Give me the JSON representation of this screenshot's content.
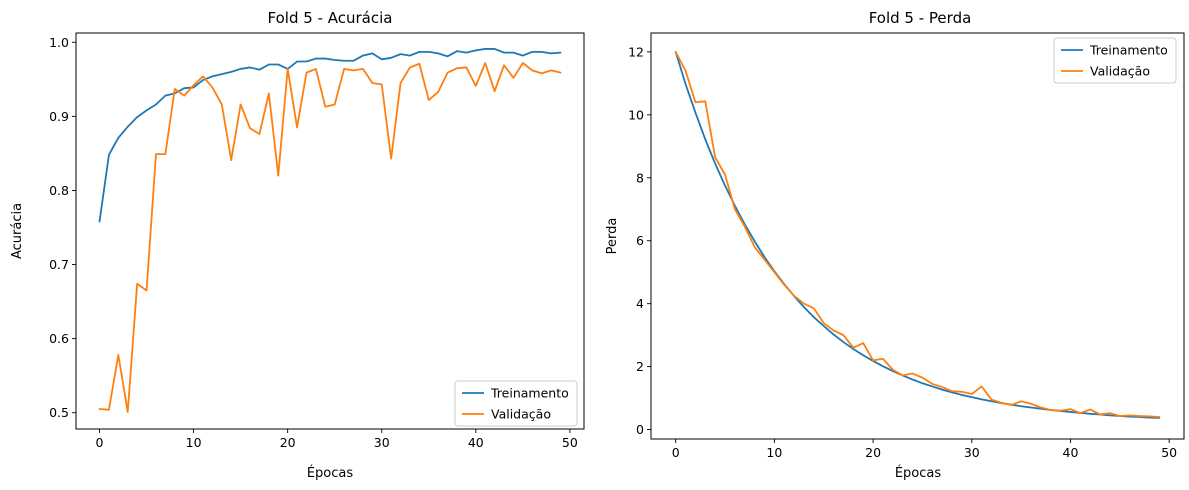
{
  "figure": {
    "background": "#ffffff",
    "series_colors": {
      "Treinamento": "#1f77b4",
      "Validação": "#ff7f0e"
    }
  },
  "chart_data": [
    {
      "type": "line",
      "title": "Fold 5 - Acurácia",
      "xlabel": "Épocas",
      "ylabel": "Acurácia",
      "xlim": [
        -2.5,
        51.5
      ],
      "ylim": [
        0.478,
        1.0125
      ],
      "xticks": [
        0,
        10,
        20,
        30,
        40,
        50
      ],
      "yticks": [
        0.5,
        0.6,
        0.7,
        0.8,
        0.9,
        1.0
      ],
      "xtick_labels": [
        "0",
        "10",
        "20",
        "30",
        "40",
        "50"
      ],
      "ytick_labels": [
        "0.5",
        "0.6",
        "0.7",
        "0.8",
        "0.9",
        "1.0"
      ],
      "grid": false,
      "legend_position": "lower-right",
      "x": [
        0,
        1,
        2,
        3,
        4,
        5,
        6,
        7,
        8,
        9,
        10,
        11,
        12,
        13,
        14,
        15,
        16,
        17,
        18,
        19,
        20,
        21,
        22,
        23,
        24,
        25,
        26,
        27,
        28,
        29,
        30,
        31,
        32,
        33,
        34,
        35,
        36,
        37,
        38,
        39,
        40,
        41,
        42,
        43,
        44,
        45,
        46,
        47,
        48,
        49
      ],
      "series": [
        {
          "name": "Treinamento",
          "color": "#1f77b4",
          "values": [
            0.758,
            0.848,
            0.871,
            0.886,
            0.899,
            0.908,
            0.916,
            0.928,
            0.931,
            0.938,
            0.939,
            0.949,
            0.954,
            0.957,
            0.96,
            0.964,
            0.966,
            0.963,
            0.97,
            0.97,
            0.964,
            0.974,
            0.974,
            0.978,
            0.978,
            0.976,
            0.975,
            0.975,
            0.982,
            0.985,
            0.977,
            0.979,
            0.984,
            0.982,
            0.987,
            0.987,
            0.985,
            0.981,
            0.988,
            0.986,
            0.989,
            0.991,
            0.991,
            0.986,
            0.986,
            0.982,
            0.987,
            0.987,
            0.985,
            0.986
          ]
        },
        {
          "name": "Validação",
          "color": "#ff7f0e",
          "values": [
            0.505,
            0.504,
            0.578,
            0.501,
            0.674,
            0.665,
            0.849,
            0.849,
            0.937,
            0.928,
            0.942,
            0.954,
            0.939,
            0.916,
            0.841,
            0.916,
            0.884,
            0.876,
            0.931,
            0.82,
            0.964,
            0.885,
            0.959,
            0.964,
            0.913,
            0.916,
            0.964,
            0.962,
            0.964,
            0.945,
            0.943,
            0.843,
            0.945,
            0.966,
            0.971,
            0.922,
            0.933,
            0.959,
            0.965,
            0.966,
            0.941,
            0.972,
            0.934,
            0.969,
            0.952,
            0.972,
            0.962,
            0.958,
            0.962,
            0.959
          ]
        }
      ]
    },
    {
      "type": "line",
      "title": "Fold 5 - Perda",
      "xlabel": "Épocas",
      "ylabel": "Perda",
      "xlim": [
        -2.5,
        51.5
      ],
      "ylim": [
        -0.3,
        12.6
      ],
      "xticks": [
        0,
        10,
        20,
        30,
        40,
        50
      ],
      "yticks": [
        0,
        2,
        4,
        6,
        8,
        10,
        12
      ],
      "xtick_labels": [
        "0",
        "10",
        "20",
        "30",
        "40",
        "50"
      ],
      "ytick_labels": [
        "0",
        "2",
        "4",
        "6",
        "8",
        "10",
        "12"
      ],
      "grid": false,
      "legend_position": "upper-right",
      "x": [
        0,
        1,
        2,
        3,
        4,
        5,
        6,
        7,
        8,
        9,
        10,
        11,
        12,
        13,
        14,
        15,
        16,
        17,
        18,
        19,
        20,
        21,
        22,
        23,
        24,
        25,
        26,
        27,
        28,
        29,
        30,
        31,
        32,
        33,
        34,
        35,
        36,
        37,
        38,
        39,
        40,
        41,
        42,
        43,
        44,
        45,
        46,
        47,
        48,
        49
      ],
      "series": [
        {
          "name": "Treinamento",
          "color": "#1f77b4",
          "values": [
            12.0,
            10.98,
            10.07,
            9.22,
            8.45,
            7.75,
            7.11,
            6.52,
            5.98,
            5.48,
            5.03,
            4.62,
            4.24,
            3.89,
            3.57,
            3.29,
            3.02,
            2.78,
            2.56,
            2.36,
            2.18,
            2.01,
            1.86,
            1.72,
            1.59,
            1.47,
            1.37,
            1.27,
            1.18,
            1.1,
            1.03,
            0.96,
            0.9,
            0.84,
            0.79,
            0.74,
            0.7,
            0.66,
            0.62,
            0.59,
            0.56,
            0.53,
            0.5,
            0.48,
            0.45,
            0.43,
            0.41,
            0.4,
            0.38,
            0.37
          ]
        },
        {
          "name": "Validação",
          "color": "#ff7f0e",
          "values": [
            12.0,
            11.4,
            10.4,
            10.43,
            8.65,
            8.1,
            7.0,
            6.45,
            5.8,
            5.4,
            5.0,
            4.6,
            4.25,
            4.0,
            3.85,
            3.38,
            3.15,
            3.0,
            2.6,
            2.75,
            2.2,
            2.25,
            1.9,
            1.72,
            1.78,
            1.65,
            1.45,
            1.35,
            1.22,
            1.2,
            1.13,
            1.37,
            0.95,
            0.85,
            0.78,
            0.9,
            0.82,
            0.7,
            0.62,
            0.6,
            0.65,
            0.52,
            0.64,
            0.48,
            0.52,
            0.43,
            0.45,
            0.43,
            0.42,
            0.4
          ]
        }
      ]
    }
  ]
}
